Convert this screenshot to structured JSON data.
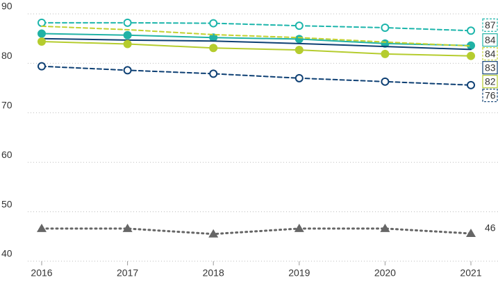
{
  "chart_data": {
    "type": "line",
    "categories": [
      "2016",
      "2017",
      "2018",
      "2019",
      "2020",
      "2021"
    ],
    "ylim": [
      40,
      90
    ],
    "yticks": [
      40,
      50,
      60,
      70,
      80,
      90
    ],
    "grid": true,
    "series": [
      {
        "color": "#1cb5ab",
        "dash": true,
        "marker": "open-circle",
        "values": [
          88.2,
          88.2,
          88.1,
          87.6,
          87.2,
          86.6
        ],
        "value_labels": [
          null,
          null,
          null,
          null,
          null,
          "87"
        ]
      },
      {
        "color": "#20b2a5",
        "dash": false,
        "marker": "filled-circle",
        "values": [
          86.0,
          85.7,
          85.2,
          84.9,
          84.0,
          83.6
        ],
        "value_labels": [
          null,
          null,
          null,
          null,
          null,
          "84"
        ]
      },
      {
        "color": "#c2d12f",
        "dash": true,
        "marker": "none",
        "values": [
          87.5,
          86.8,
          85.8,
          85.2,
          84.3,
          83.5
        ],
        "value_labels": [
          null,
          null,
          null,
          null,
          null,
          "84"
        ]
      },
      {
        "color": "#0d3f73",
        "dash": false,
        "marker": "none",
        "values": [
          85.0,
          84.7,
          84.5,
          84.0,
          83.4,
          82.8
        ],
        "value_labels": [
          null,
          null,
          null,
          null,
          null,
          "83"
        ]
      },
      {
        "color": "#b5cc2e",
        "dash": false,
        "marker": "filled-circle",
        "values": [
          84.4,
          83.9,
          83.1,
          82.7,
          81.9,
          81.5
        ],
        "value_labels": [
          null,
          null,
          null,
          null,
          null,
          "82"
        ]
      },
      {
        "color": "#0d3f73",
        "dash": true,
        "marker": "open-circle",
        "values": [
          79.4,
          78.6,
          77.9,
          77.0,
          76.3,
          75.6
        ],
        "value_labels": [
          null,
          null,
          null,
          null,
          null,
          "76"
        ]
      },
      {
        "color": "#666666",
        "dash": "dot",
        "marker": "triangle",
        "values": [
          46.6,
          46.6,
          45.5,
          46.6,
          46.6,
          45.6
        ],
        "value_labels": [
          null,
          null,
          null,
          null,
          null,
          "46"
        ]
      }
    ]
  }
}
